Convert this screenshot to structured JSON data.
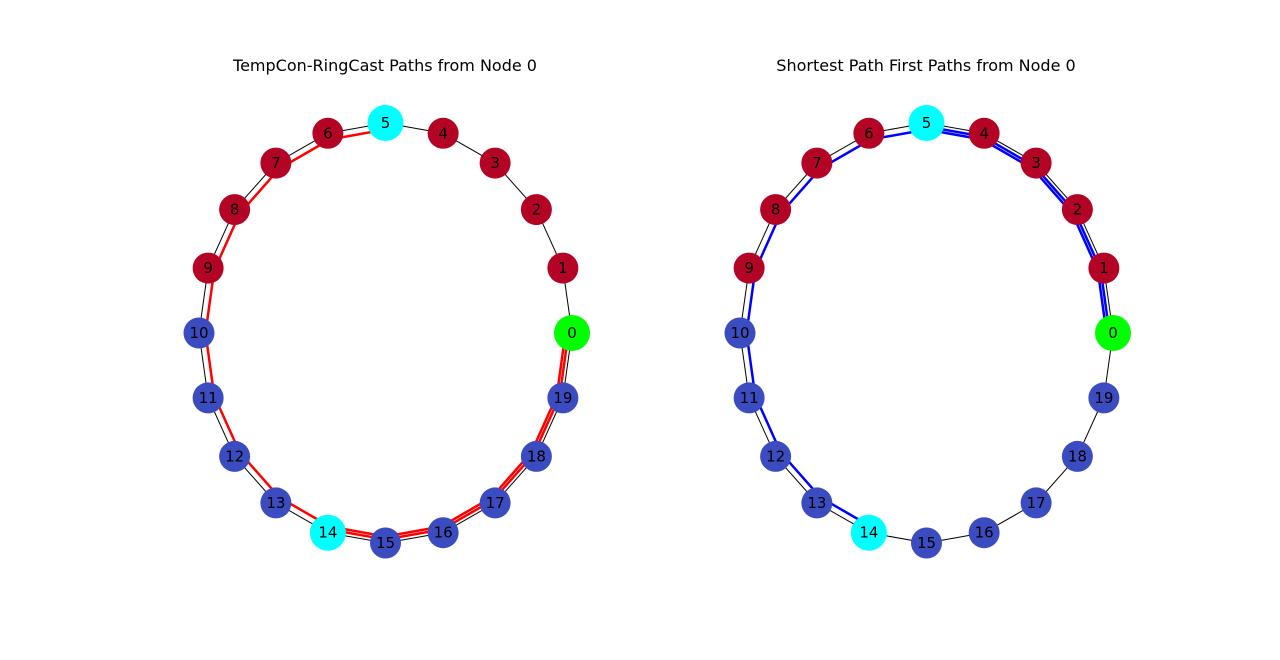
{
  "panels": [
    {
      "title": "TempCon-RingCast Paths from Node 0",
      "path_color": "#ff0000",
      "nodes": [
        {
          "label": "0",
          "color": "#00ff00"
        },
        {
          "label": "1",
          "color": "#b40426"
        },
        {
          "label": "2",
          "color": "#b40426"
        },
        {
          "label": "3",
          "color": "#b40426"
        },
        {
          "label": "4",
          "color": "#b40426"
        },
        {
          "label": "5",
          "color": "#00ffff"
        },
        {
          "label": "6",
          "color": "#b40426"
        },
        {
          "label": "7",
          "color": "#b40426"
        },
        {
          "label": "8",
          "color": "#b40426"
        },
        {
          "label": "9",
          "color": "#b40426"
        },
        {
          "label": "10",
          "color": "#3b4cc0"
        },
        {
          "label": "11",
          "color": "#3b4cc0"
        },
        {
          "label": "12",
          "color": "#3b4cc0"
        },
        {
          "label": "13",
          "color": "#3b4cc0"
        },
        {
          "label": "14",
          "color": "#00ffff"
        },
        {
          "label": "15",
          "color": "#3b4cc0"
        },
        {
          "label": "16",
          "color": "#3b4cc0"
        },
        {
          "label": "17",
          "color": "#3b4cc0"
        },
        {
          "label": "18",
          "color": "#3b4cc0"
        },
        {
          "label": "19",
          "color": "#3b4cc0"
        }
      ],
      "paths": [
        [
          0,
          19,
          18,
          17,
          16,
          15,
          14
        ],
        [
          0,
          19,
          18,
          17,
          16,
          15,
          14,
          13,
          12,
          11,
          10,
          9,
          8,
          7,
          6,
          5
        ]
      ]
    },
    {
      "title": "Shortest Path First Paths from Node 0",
      "path_color": "#0000ff",
      "nodes": [
        {
          "label": "0",
          "color": "#00ff00"
        },
        {
          "label": "1",
          "color": "#b40426"
        },
        {
          "label": "2",
          "color": "#b40426"
        },
        {
          "label": "3",
          "color": "#b40426"
        },
        {
          "label": "4",
          "color": "#b40426"
        },
        {
          "label": "5",
          "color": "#00ffff"
        },
        {
          "label": "6",
          "color": "#b40426"
        },
        {
          "label": "7",
          "color": "#b40426"
        },
        {
          "label": "8",
          "color": "#b40426"
        },
        {
          "label": "9",
          "color": "#b40426"
        },
        {
          "label": "10",
          "color": "#3b4cc0"
        },
        {
          "label": "11",
          "color": "#3b4cc0"
        },
        {
          "label": "12",
          "color": "#3b4cc0"
        },
        {
          "label": "13",
          "color": "#3b4cc0"
        },
        {
          "label": "14",
          "color": "#00ffff"
        },
        {
          "label": "15",
          "color": "#3b4cc0"
        },
        {
          "label": "16",
          "color": "#3b4cc0"
        },
        {
          "label": "17",
          "color": "#3b4cc0"
        },
        {
          "label": "18",
          "color": "#3b4cc0"
        },
        {
          "label": "19",
          "color": "#3b4cc0"
        }
      ],
      "paths": [
        [
          0,
          1,
          2,
          3,
          4,
          5
        ],
        [
          0,
          1,
          2,
          3,
          4,
          5,
          6,
          7,
          8,
          9,
          10,
          11,
          12,
          13,
          14
        ]
      ]
    }
  ]
}
